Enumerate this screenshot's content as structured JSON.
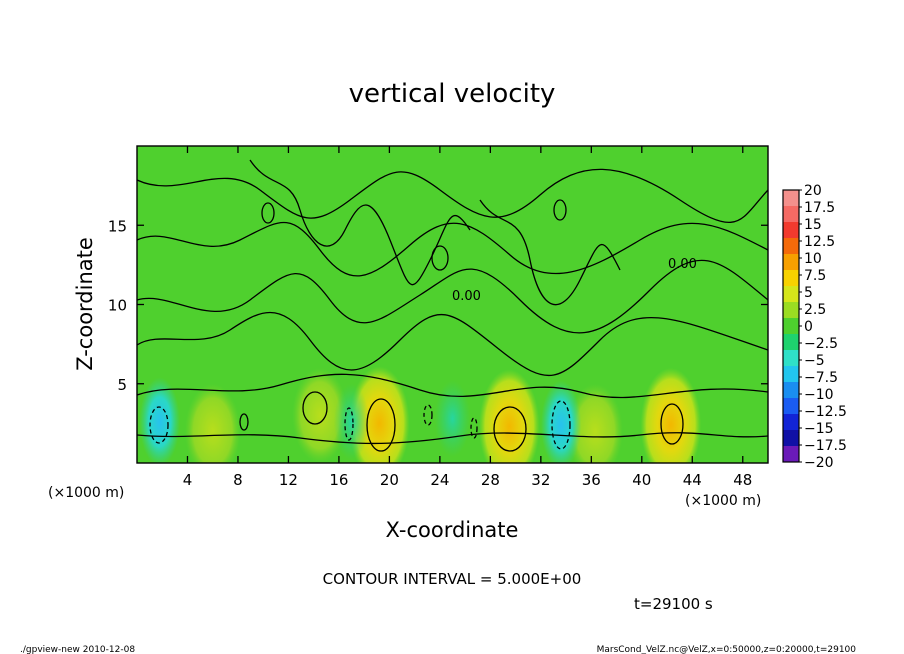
{
  "chart_data": {
    "type": "heatmap",
    "title": "vertical velocity",
    "xlabel": "X-coordinate",
    "ylabel": "Z-coordinate",
    "x_unit_left": "(×1000 m)",
    "x_unit_right": "(×1000 m)",
    "xlim": [
      0,
      50
    ],
    "ylim": [
      0,
      20
    ],
    "x_ticks": [
      4,
      8,
      12,
      16,
      20,
      24,
      28,
      32,
      36,
      40,
      44,
      48
    ],
    "y_ticks": [
      5,
      10,
      15
    ],
    "contour_label": "0.00",
    "contour_interval_text": "CONTOUR INTERVAL = 5.000E+00",
    "time_text": "t=29100 s",
    "colorbar": {
      "levels": [
        "20",
        "17.5",
        "15",
        "12.5",
        "10",
        "7.5",
        "5",
        "2.5",
        "0",
        "−2.5",
        "−5",
        "−7.5",
        "−10",
        "−12.5",
        "−15",
        "−17.5",
        "−20"
      ],
      "colors": [
        "#f4908c",
        "#f56a64",
        "#f23a2e",
        "#f46a0a",
        "#f7a000",
        "#f8d200",
        "#d6e61a",
        "#9bdc22",
        "#4ed02e",
        "#1ed26e",
        "#2fe0c8",
        "#22c6ee",
        "#1a8ef0",
        "#1a5cf2",
        "#1224d6",
        "#1010a6",
        "#6a1ab8"
      ]
    },
    "features": [
      {
        "kind": "updraft",
        "x": 19.2,
        "z": 2.5
      },
      {
        "kind": "updraft",
        "x": 29.5,
        "z": 2.3
      },
      {
        "kind": "updraft",
        "x": 42.3,
        "z": 2.4
      },
      {
        "kind": "weak-updraft",
        "x": 14.5,
        "z": 3.0
      },
      {
        "kind": "weak-updraft",
        "x": 36.3,
        "z": 2.0
      },
      {
        "kind": "weak-updraft",
        "x": 6.0,
        "z": 2.0
      },
      {
        "kind": "downdraft",
        "x": 1.8,
        "z": 2.6
      },
      {
        "kind": "downdraft",
        "x": 33.6,
        "z": 2.4
      },
      {
        "kind": "weak-downdraft",
        "x": 17.0,
        "z": 2.6
      },
      {
        "kind": "weak-downdraft",
        "x": 25.0,
        "z": 2.8
      }
    ]
  },
  "footer": {
    "left": "./gpview-new  2010-12-08",
    "right": "MarsCond_VelZ.nc@VelZ,x=0:50000,z=0:20000,t=29100"
  }
}
